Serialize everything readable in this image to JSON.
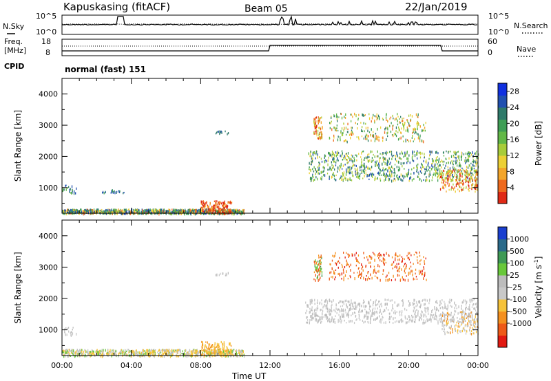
{
  "header": {
    "station": "Kapuskasing (fitACF)",
    "beam": "Beam 05",
    "date": "22/Jan/2019"
  },
  "status_panels": {
    "nsky_label": "N.Sky",
    "nsky_ticks": [
      "10^5",
      "10^0"
    ],
    "nsearch_label": "N.Search",
    "nsearch_ticks": [
      "10^5",
      "10^0"
    ],
    "freq_label": "Freq.",
    "freq_unit": "[MHz]",
    "freq_ticks": [
      "18",
      "8"
    ],
    "nave_label": "Nave",
    "nave_ticks": [
      "60",
      "0"
    ],
    "cpid_label": "CPID",
    "cpid_text": "normal (fast) 151"
  },
  "chart_data": [
    {
      "type": "heatmap",
      "name": "power-panel",
      "ylabel": "Slant Range [km]",
      "xlabel": "",
      "ylim": [
        180,
        4500
      ],
      "xlim_hours": [
        0,
        24
      ],
      "y_ticks": [
        "4000",
        "3000",
        "2000",
        "1000"
      ],
      "y_tick_values": [
        4000,
        3000,
        2000,
        1000
      ],
      "colorbar": {
        "label": "Power [dB]",
        "ticks": [
          "28",
          "24",
          "20",
          "16",
          "12",
          "8",
          "4"
        ],
        "tick_values": [
          28,
          24,
          20,
          16,
          12,
          8,
          4
        ],
        "range": [
          0,
          30
        ],
        "colors": [
          "#1030e0",
          "#2050b0",
          "#2e7a6a",
          "#3f9e55",
          "#62b847",
          "#a8cc3a",
          "#ecd035",
          "#f3a52a",
          "#ee6a1e",
          "#e02a16"
        ]
      }
    },
    {
      "type": "heatmap",
      "name": "velocity-panel",
      "ylabel": "Slant Range [km]",
      "xlabel": "Time UT",
      "ylim": [
        180,
        4500
      ],
      "xlim_hours": [
        0,
        24
      ],
      "y_ticks": [
        "4000",
        "3000",
        "2000",
        "1000"
      ],
      "y_tick_values": [
        4000,
        3000,
        2000,
        1000
      ],
      "x_ticks": [
        "00:00",
        "04:00",
        "08:00",
        "12:00",
        "16:00",
        "20:00",
        "00:00"
      ],
      "x_tick_hours": [
        0,
        4,
        8,
        12,
        16,
        20,
        24
      ],
      "colorbar": {
        "label": "Velocity [m s",
        "label_sup": "-1",
        "label_close": "]",
        "ticks": [
          "1000",
          "500",
          "100",
          "25",
          "-25",
          "-100",
          "-500",
          "-1000"
        ],
        "colors": [
          "#1a3fd0",
          "#2a6a8a",
          "#3e9a55",
          "#68c83a",
          "#bcbcbc",
          "#c8c8c8",
          "#f5c23a",
          "#f4901f",
          "#ee5a18",
          "#e21a12"
        ]
      }
    }
  ]
}
